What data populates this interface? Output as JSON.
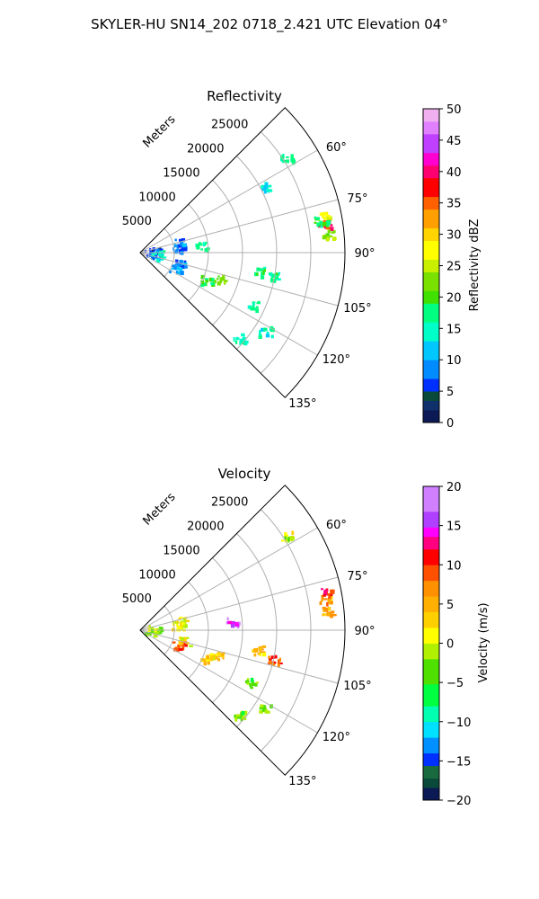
{
  "figure": {
    "title": "SKYLER-HU  SN14_202  0718_2.421 UTC Elevation 04°"
  },
  "chart_data": [
    {
      "type": "polar-sector",
      "title": "Reflectivity",
      "range_label": "Meters",
      "range_ticks": [
        5000,
        10000,
        15000,
        20000,
        25000
      ],
      "range_tick_labels": [
        "5000",
        "10000",
        "15000",
        "20000",
        "25000"
      ],
      "range_max": 30000,
      "azimuth_range_deg": [
        45,
        135
      ],
      "azimuth_ticks": [
        60,
        75,
        90,
        105,
        120,
        135
      ],
      "azimuth_tick_labels": [
        "60°",
        "75°",
        "90°",
        "105°",
        "120°",
        "135°"
      ],
      "grid": true,
      "colorbar": {
        "label": "Reflectivity dBZ",
        "vmin": 0,
        "vmax": 50,
        "ticks": [
          0,
          5,
          10,
          15,
          20,
          25,
          30,
          35,
          40,
          45,
          50
        ],
        "tick_labels": [
          "0",
          "5",
          "10",
          "15",
          "20",
          "25",
          "30",
          "35",
          "40",
          "45",
          "50"
        ]
      },
      "echoes": [
        {
          "azimuth": 78,
          "range": 27500,
          "value": 28
        },
        {
          "azimuth": 81,
          "range": 27300,
          "value": 38
        },
        {
          "azimuth": 84,
          "range": 27700,
          "value": 22
        },
        {
          "azimuth": 80,
          "range": 26800,
          "value": 18
        },
        {
          "azimuth": 99,
          "range": 17500,
          "value": 18
        },
        {
          "azimuth": 108,
          "range": 12000,
          "value": 22
        },
        {
          "azimuth": 112,
          "range": 10500,
          "value": 18
        },
        {
          "azimuth": 104,
          "range": 6000,
          "value": 8
        },
        {
          "azimuth": 112,
          "range": 5500,
          "value": 10
        },
        {
          "azimuth": 82,
          "range": 5500,
          "value": 8
        },
        {
          "azimuth": 76,
          "range": 6000,
          "value": 8
        },
        {
          "azimuth": 86,
          "range": 2000,
          "value": 6
        },
        {
          "azimuth": 95,
          "range": 1500,
          "value": 8
        },
        {
          "azimuth": 96,
          "range": 2500,
          "value": 14
        },
        {
          "azimuth": 84,
          "range": 9000,
          "value": 16
        },
        {
          "azimuth": 57,
          "range": 25500,
          "value": 16
        },
        {
          "azimuth": 62,
          "range": 21000,
          "value": 14
        },
        {
          "azimuth": 115,
          "range": 18000,
          "value": 16
        },
        {
          "azimuth": 122,
          "range": 21500,
          "value": 15
        },
        {
          "azimuth": 131,
          "range": 19000,
          "value": 16
        },
        {
          "azimuth": 100,
          "range": 20000,
          "value": 18
        }
      ]
    },
    {
      "type": "polar-sector",
      "title": "Velocity",
      "range_label": "Meters",
      "range_ticks": [
        5000,
        10000,
        15000,
        20000,
        25000
      ],
      "range_tick_labels": [
        "5000",
        "10000",
        "15000",
        "20000",
        "25000"
      ],
      "range_max": 30000,
      "azimuth_range_deg": [
        45,
        135
      ],
      "azimuth_ticks": [
        60,
        75,
        90,
        105,
        120,
        135
      ],
      "azimuth_tick_labels": [
        "60°",
        "75°",
        "90°",
        "105°",
        "120°",
        "135°"
      ],
      "grid": true,
      "colorbar": {
        "label": "Velocity (m/s)",
        "vmin": -20,
        "vmax": 20,
        "ticks": [
          -20,
          -15,
          -10,
          -5,
          0,
          5,
          10,
          15,
          20
        ],
        "tick_labels": [
          "−20",
          "−15",
          "−10",
          "−5",
          "0",
          "5",
          "10",
          "15",
          "20"
        ]
      },
      "echoes": [
        {
          "azimuth": 80,
          "range": 27300,
          "value": 6
        },
        {
          "azimuth": 78,
          "range": 27800,
          "value": 10
        },
        {
          "azimuth": 84,
          "range": 27500,
          "value": 4
        },
        {
          "azimuth": 99,
          "range": 17500,
          "value": 4
        },
        {
          "azimuth": 108,
          "range": 12000,
          "value": 3
        },
        {
          "azimuth": 112,
          "range": 10500,
          "value": 2
        },
        {
          "azimuth": 110,
          "range": 6000,
          "value": 10
        },
        {
          "azimuth": 104,
          "range": 6500,
          "value": 2
        },
        {
          "azimuth": 82,
          "range": 5500,
          "value": 1
        },
        {
          "azimuth": 76,
          "range": 6000,
          "value": 1
        },
        {
          "azimuth": 86,
          "range": 2000,
          "value": -1
        },
        {
          "azimuth": 95,
          "range": 1500,
          "value": -2
        },
        {
          "azimuth": 84,
          "range": 13500,
          "value": 16
        },
        {
          "azimuth": 57,
          "range": 25500,
          "value": 0
        },
        {
          "azimuth": 115,
          "range": 18000,
          "value": -4
        },
        {
          "azimuth": 122,
          "range": 21500,
          "value": -2
        },
        {
          "azimuth": 131,
          "range": 19000,
          "value": -3
        },
        {
          "azimuth": 102,
          "range": 20000,
          "value": 9
        }
      ]
    }
  ]
}
